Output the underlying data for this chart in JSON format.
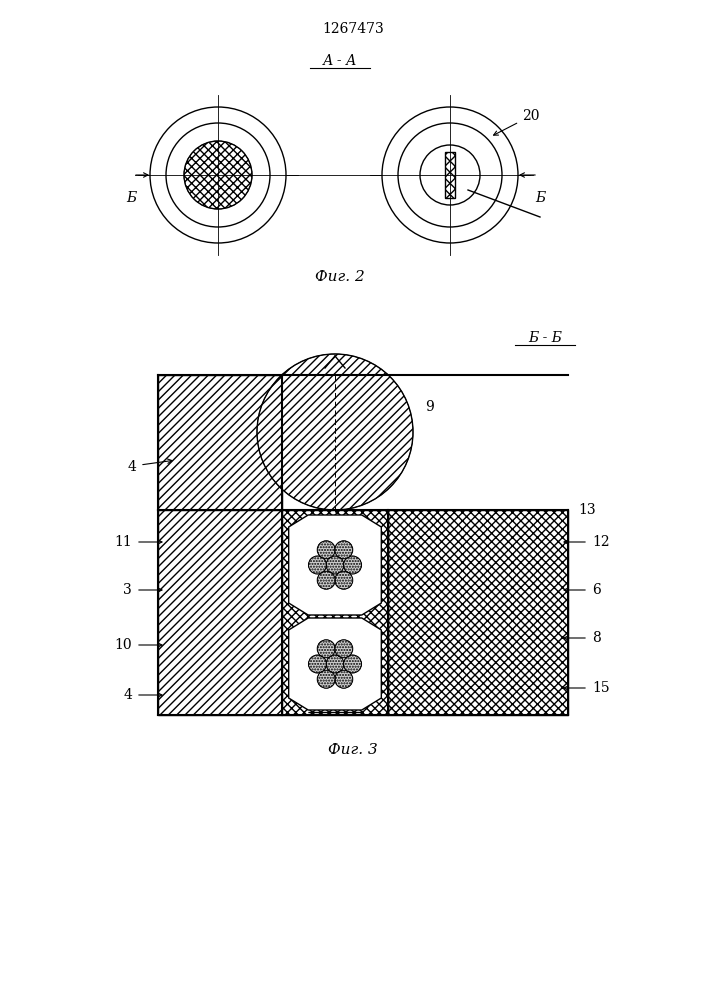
{
  "patent_number": "1267473",
  "fig2_label": "Фиг. 2",
  "fig3_label": "Фиг. 3",
  "aa_label": "А - А",
  "bb_label": "Б - Б",
  "bg_color": "#ffffff",
  "line_color": "#000000"
}
